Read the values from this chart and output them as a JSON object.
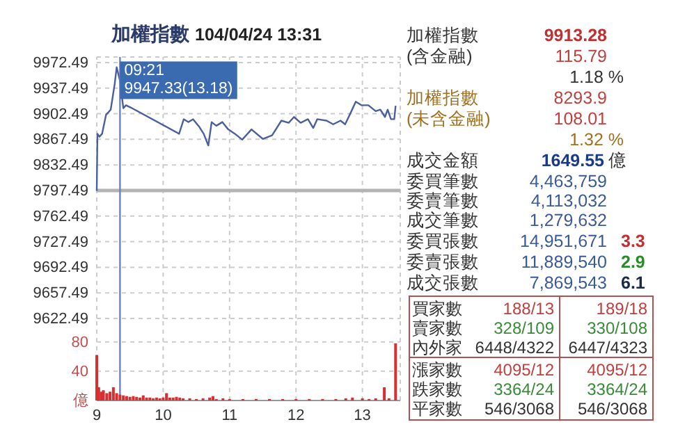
{
  "chart_data": [
    {
      "type": "line",
      "title": "加權指數",
      "subtitle": "104/04/24 13:31",
      "xlim": [
        9,
        13.57
      ],
      "xticks": [
        9,
        10,
        11,
        12,
        13
      ],
      "ylim": [
        9622.49,
        9980
      ],
      "yticks": [
        9972.49,
        9937.49,
        9902.49,
        9867.49,
        9832.49,
        9797.49,
        9762.49,
        9727.49,
        9692.49,
        9657.49,
        9622.49
      ],
      "tick_labels": "y",
      "grid": true,
      "series": [
        {
          "color": "#4a5fa0",
          "x": [
            9,
            9.01,
            9.04,
            9.08,
            9.14,
            9.21,
            9.27,
            9.3,
            9.35,
            9.4,
            9.44,
            9.51,
            10.24,
            10.31,
            10.38,
            10.45,
            10.54,
            10.61,
            10.68,
            10.73,
            10.8,
            10.89,
            10.98,
            11.08,
            11.19,
            11.33,
            11.5,
            11.64,
            11.78,
            11.89,
            11.97,
            12.07,
            12.18,
            12.26,
            12.32,
            12.46,
            12.56,
            12.67,
            12.74,
            12.83,
            12.9,
            12.99,
            13.09,
            13.2,
            13.27,
            13.34,
            13.38,
            13.43,
            13.48,
            13.5
          ],
          "values": [
            9797,
            9875,
            9871,
            9875,
            9901,
            9908,
            9943,
            9966,
            9947.33,
            9910,
            9914,
            9911,
            9875,
            9895,
            9891,
            9895,
            9885,
            9875,
            9859,
            9891,
            9886,
            9891,
            9881,
            9875,
            9867,
            9881,
            9868,
            9873,
            9893,
            9890,
            9898,
            9890,
            9895,
            9883,
            9895,
            9893,
            9888,
            9893,
            9888,
            9905,
            9919,
            9914,
            9914,
            9906,
            9908,
            9898,
            9908,
            9895,
            9895,
            9913.28
          ]
        }
      ],
      "ref_lines": [
        {
          "axis": "y",
          "value": 9797.49,
          "color": "#b4b4b4"
        },
        {
          "axis": "x",
          "value": 9.35,
          "color": "#6a82c0"
        }
      ],
      "annotations": [
        {
          "text": "09:21",
          "x": 9.35,
          "y": 9947.33
        },
        {
          "text": "9947.33(13.18)",
          "x": 9.35,
          "y": 9947.33
        }
      ]
    },
    {
      "type": "bar",
      "xlim": [
        9,
        13.57
      ],
      "xticks": [
        9,
        10,
        11,
        12,
        13
      ],
      "ylim": [
        0,
        110
      ],
      "yticks": [
        {
          "value": 0,
          "label": "億"
        },
        40,
        80
      ],
      "grid": true,
      "x": [
        9,
        9.03,
        9.07,
        9.1,
        9.15,
        9.2,
        9.25,
        9.3,
        9.35,
        9.4,
        9.45,
        9.5,
        9.55,
        9.6,
        9.65,
        9.7,
        9.75,
        9.8,
        9.85,
        9.9,
        9.95,
        10,
        10.05,
        10.1,
        10.15,
        10.2,
        10.25,
        10.3,
        10.4,
        10.5,
        10.6,
        10.7,
        10.75,
        10.8,
        10.9,
        11,
        11.2,
        11.4,
        11.6,
        11.8,
        12,
        12.2,
        12.4,
        12.6,
        12.75,
        12.85,
        13,
        13.1,
        13.2,
        13.33,
        13.4,
        13.5
      ],
      "values": [
        62,
        18,
        12,
        14,
        10,
        12,
        18,
        10,
        8,
        7,
        6,
        5,
        6,
        5,
        4,
        7,
        4,
        4,
        3,
        4,
        3,
        4,
        10,
        4,
        4,
        5,
        4,
        3,
        3,
        2,
        3,
        4,
        6,
        2,
        3,
        2,
        2,
        2,
        2,
        2,
        2,
        2,
        2,
        2,
        3,
        4,
        3,
        2,
        3,
        18,
        3,
        78
      ],
      "color": "#d83030"
    },
    {
      "type": "other",
      "annotations": [
        "加權指數",
        "9913.28",
        "(含金融)",
        "115.79",
        "1.18 %",
        "加權指數",
        "8293.9",
        "(未含金融)",
        "108.01",
        "1.32 %",
        "成交金額",
        "1649.55",
        "億",
        "委買筆數",
        "4,463,759",
        "委賣筆數",
        "4,113,032",
        "成交筆數",
        "1,279,632",
        "委買張數",
        "14,951,671",
        "3.3",
        "委賣張數",
        "11,889,540",
        "2.9",
        "成交張數",
        "7,869,543",
        "6.1",
        "買家數",
        "188/13",
        "189/18",
        "賣家數",
        "328/109",
        "330/108",
        "內外家",
        "6448/4322",
        "6447/4323",
        "漲家數",
        "4095/12",
        "4095/12",
        "跌家數",
        "3364/24",
        "3364/24",
        "平家數",
        "546/3068",
        "546/3068"
      ]
    }
  ]
}
